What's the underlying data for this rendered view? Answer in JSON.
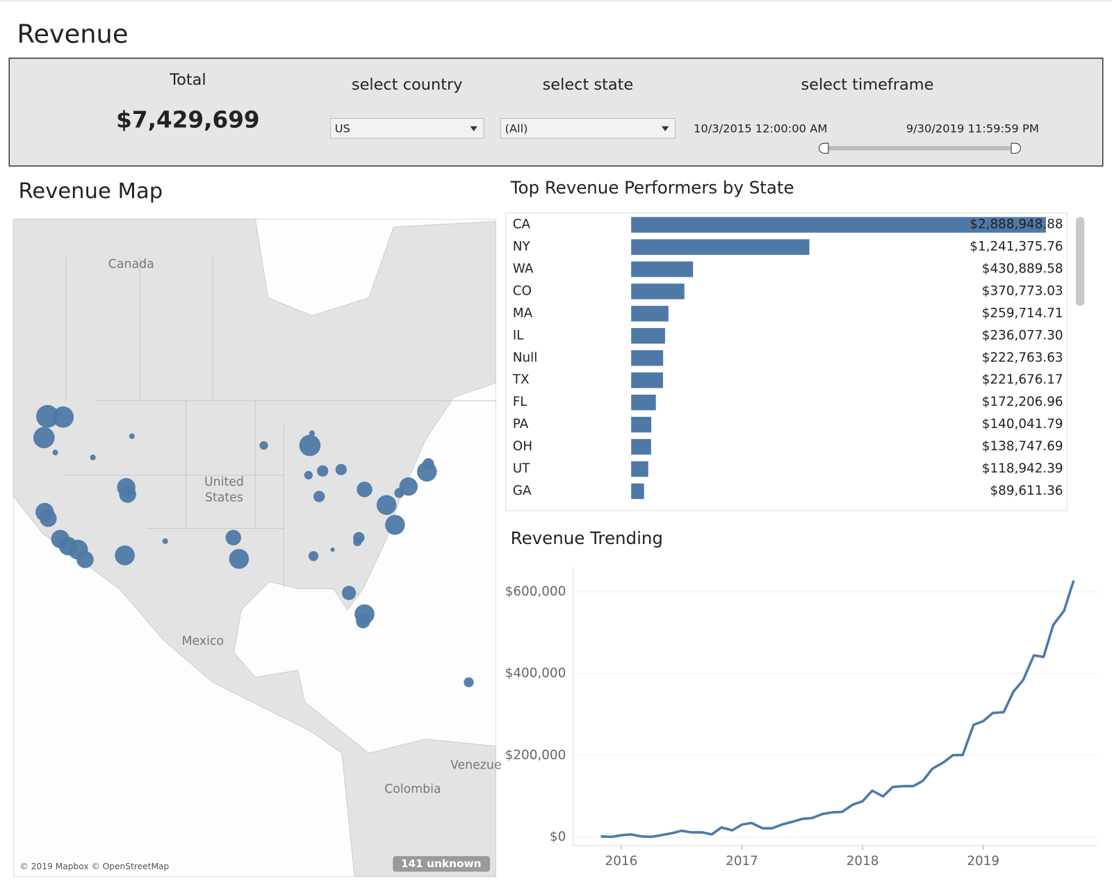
{
  "header": {
    "title": "Revenue"
  },
  "filters": {
    "total_label": "Total",
    "total_value": "$7,429,699",
    "country_label": "select country",
    "country_value": "US",
    "state_label": "select state",
    "state_value": "(All)",
    "timeframe_label": "select timeframe",
    "timeframe_start": "10/3/2015 12:00:00 AM",
    "timeframe_end": "9/30/2019 11:59:59 PM"
  },
  "map": {
    "title": "Revenue Map",
    "labels": [
      "Canada",
      "United",
      "States",
      "Mexico",
      "Venezue",
      "Colombia"
    ],
    "credit": "© 2019 Mapbox © OpenStreetMap",
    "unknown": "141 unknown"
  },
  "chart_data": [
    {
      "type": "hbar",
      "title": "Top Revenue Performers by State",
      "categories": [
        "CA",
        "NY",
        "WA",
        "CO",
        "MA",
        "IL",
        "Null",
        "TX",
        "FL",
        "PA",
        "OH",
        "UT",
        "GA"
      ],
      "values": [
        2888948.88,
        1241375.76,
        430889.58,
        370773.03,
        259714.71,
        236077.3,
        222763.63,
        221676.17,
        172206.96,
        140041.79,
        138747.69,
        118942.39,
        89611.36
      ],
      "value_labels": [
        "$2,888,948.88",
        "$1,241,375.76",
        "$430,889.58",
        "$370,773.03",
        "$259,714.71",
        "$236,077.30",
        "$222,763.63",
        "$221,676.17",
        "$172,206.96",
        "$140,041.79",
        "$138,747.69",
        "$118,942.39",
        "$89,611.36"
      ],
      "color": "#4e79a7",
      "xlim": [
        0,
        2890000
      ]
    },
    {
      "type": "line",
      "title": "Revenue Trending",
      "x": [
        2015.83,
        2015.92,
        2016.0,
        2016.08,
        2016.17,
        2016.25,
        2016.33,
        2016.42,
        2016.5,
        2016.58,
        2016.67,
        2016.75,
        2016.83,
        2016.92,
        2017.0,
        2017.08,
        2017.17,
        2017.25,
        2017.33,
        2017.42,
        2017.5,
        2017.58,
        2017.67,
        2017.75,
        2017.83,
        2017.92,
        2018.0,
        2018.08,
        2018.17,
        2018.25,
        2018.33,
        2018.42,
        2018.5,
        2018.58,
        2018.67,
        2018.75,
        2018.83,
        2018.92,
        2019.0,
        2019.08,
        2019.17,
        2019.25,
        2019.33,
        2019.42,
        2019.5,
        2019.58,
        2019.67,
        2019.75
      ],
      "series": [
        {
          "name": "Revenue",
          "color": "#4e79a7",
          "values": [
            2000,
            1000,
            5000,
            7000,
            2000,
            1000,
            5000,
            10000,
            16000,
            12000,
            12000,
            7000,
            24000,
            17000,
            31000,
            35000,
            22000,
            22000,
            31000,
            38000,
            45000,
            47000,
            57000,
            61000,
            62000,
            80000,
            88000,
            114000,
            100000,
            123000,
            125000,
            125000,
            138000,
            168000,
            183000,
            201000,
            201000,
            275000,
            284000,
            304000,
            306000,
            356000,
            384000,
            445000,
            441000,
            519000,
            554000,
            628000
          ]
        }
      ],
      "xlim": [
        2015.6,
        2019.95
      ],
      "xticks": [
        2016,
        2017,
        2018,
        2019
      ],
      "ylim": [
        -20000,
        660000
      ],
      "yticks": [
        {
          "value": 0,
          "label": "$0"
        },
        {
          "value": 200000,
          "label": "$200,000"
        },
        {
          "value": 400000,
          "label": "$400,000"
        },
        {
          "value": 600000,
          "label": "$600,000"
        }
      ],
      "grid": true
    }
  ]
}
